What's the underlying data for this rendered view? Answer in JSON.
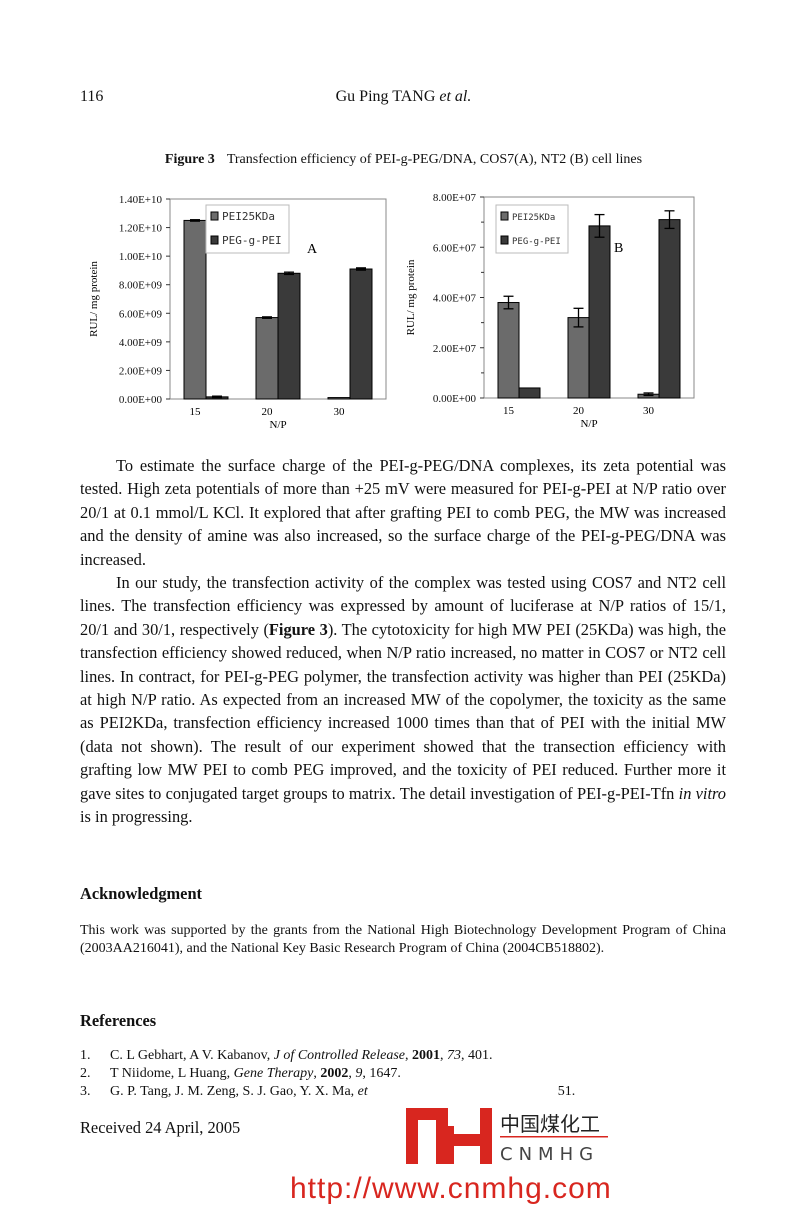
{
  "header": {
    "page_number": "116",
    "running_head": "Gu Ping TANG",
    "running_head_italic": "et al."
  },
  "figure": {
    "label": "Figure 3",
    "caption": "Transfection efficiency of PEI-g-PEG/DNA, COS7(A), NT2 (B) cell lines"
  },
  "chart_data": [
    {
      "type": "bar",
      "panel_label": "A",
      "categories": [
        "15",
        "20",
        "30"
      ],
      "xlabel": "N/P",
      "ylabel": "RUL/ mg protein",
      "ylim": [
        0,
        14000000000.0
      ],
      "yticks": [
        "0.00E+00",
        "2.00E+09",
        "4.00E+09",
        "6.00E+09",
        "8.00E+09",
        "1.00E+10",
        "1.20E+10",
        "1.40E+10"
      ],
      "legend_position": "top-center",
      "series": [
        {
          "name": "PEI25KDa",
          "color": "#6b6b6b",
          "values": [
            12500000000.0,
            5700000000.0,
            100000000.0
          ],
          "errors": [
            50000000.0,
            50000000.0,
            0
          ]
        },
        {
          "name": "PEG-g-PEI",
          "color": "#3a3a3a",
          "values": [
            150000000.0,
            8800000000.0,
            9100000000.0
          ],
          "errors": [
            50000000.0,
            80000000.0,
            80000000.0
          ]
        }
      ]
    },
    {
      "type": "bar",
      "panel_label": "B",
      "categories": [
        "15",
        "20",
        "30"
      ],
      "xlabel": "N/P",
      "ylabel": "RUL/ mg protein",
      "ylim": [
        0,
        80000000.0
      ],
      "yticks": [
        "0.00E+00",
        "2.00E+07",
        "4.00E+07",
        "6.00E+07",
        "8.00E+07"
      ],
      "legend_position": "top-left",
      "series": [
        {
          "name": "PEI25KDa",
          "color": "#6b6b6b",
          "values": [
            38000000.0,
            32000000.0,
            1500000.0
          ],
          "errors": [
            2500000.0,
            3700000.0,
            500000.0
          ]
        },
        {
          "name": "PEG-g-PEI",
          "color": "#3a3a3a",
          "values": [
            4000000.0,
            68500000.0,
            71000000.0
          ],
          "errors": [
            0,
            4500000.0,
            3500000.0
          ]
        }
      ]
    }
  ],
  "body": {
    "paragraphs": [
      "To estimate the surface charge of the PEI-g-PEG/DNA complexes, its zeta potential was tested.   High zeta potentials of more than +25 mV were measured for PEI-g-PEI at N/P ratio over 20/1 at 0.1 mmol/L KCl.   It explored that after grafting PEI to comb PEG, the MW was increased and the density of amine was also increased, so the surface charge of the PEI-g-PEG/DNA was increased.",
      {
        "before": "In our study, the transfection activity of the complex was tested using COS7 and NT2 cell lines.   The transfection efficiency was expressed by amount of luciferase at N/P ratios of 15/1, 20/1 and 30/1, respectively (",
        "bold": "Figure 3",
        "after": ").   The cytotoxicity for high MW PEI (25KDa) was high, the transfection efficiency showed reduced, when N/P ratio increased, no matter in COS7 or NT2 cell lines.   In contract, for PEI-g-PEG polymer, the transfection activity was higher than PEI (25KDa) at high N/P ratio.   As expected from an increased MW of the copolymer, the toxicity as the same as PEI2KDa, transfection efficiency increased 1000 times than that of PEI with the initial MW (data not shown).   The result of our experiment showed that the transection efficiency with grafting low MW PEI to comb PEG improved, and the toxicity of PEI reduced.   Further more it gave sites to conjugated target groups to matrix.   The detail investigation of PEI-g-PEI-Tfn ",
        "italic": "in vitro",
        "end": " is in progressing."
      }
    ]
  },
  "acknowledgment": {
    "heading": "Acknowledgment",
    "text": "This work was supported by the grants from the National High Biotechnology Development Program of China (2003AA216041), and the National Key Basic Research Program of China (2004CB518802)."
  },
  "references": {
    "heading": "References",
    "items": [
      {
        "n": "1.",
        "authors": "C. L Gebhart, A V. Kabanov, ",
        "journal": "J of Controlled Release",
        "sep": ", ",
        "year": "2001",
        "vol": "73",
        "pages": ", 401."
      },
      {
        "n": "2.",
        "authors": "T Niidome, L Huang, ",
        "journal": "Gene Therapy",
        "sep": ", ",
        "year": "2002",
        "vol": "9",
        "pages": ", 1647."
      },
      {
        "n": "3.",
        "authors": "G. P. Tang, J. M. Zeng, S. J. Gao, Y. X. Ma, ",
        "journal": "et",
        "sep": "",
        "year": "",
        "vol": "",
        "pages": "51."
      }
    ]
  },
  "received": "Received 24 April, 2005",
  "watermark": "http://www.cnmhg.com",
  "logo": {
    "cn": "中国煤化工",
    "en": "CNMHG",
    "color": "#d8261f"
  }
}
